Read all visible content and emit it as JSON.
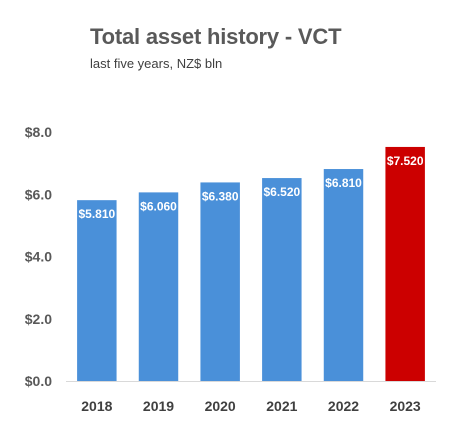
{
  "chart_data": {
    "type": "bar",
    "title": "Total asset history - VCT",
    "subtitle": "last five years, NZ$ bln",
    "categories": [
      "2018",
      "2019",
      "2020",
      "2021",
      "2022",
      "2023"
    ],
    "values": [
      5.81,
      6.06,
      6.38,
      6.52,
      6.81,
      7.52
    ],
    "data_labels": [
      "$5.810",
      "$6.060",
      "$6.380",
      "$6.520",
      "$6.810",
      "$7.520"
    ],
    "ylim": [
      0,
      8
    ],
    "yticks": [
      0,
      2,
      4,
      6,
      8
    ],
    "ytick_labels": [
      "$0.0",
      "$2.0",
      "$4.0",
      "$6.0",
      "$8.0"
    ],
    "xlabel": "",
    "ylabel": "",
    "grid": false,
    "colors": {
      "default_bar": "#4A90D9",
      "highlight_bar": "#CC0000",
      "highlight_index": 5
    }
  }
}
